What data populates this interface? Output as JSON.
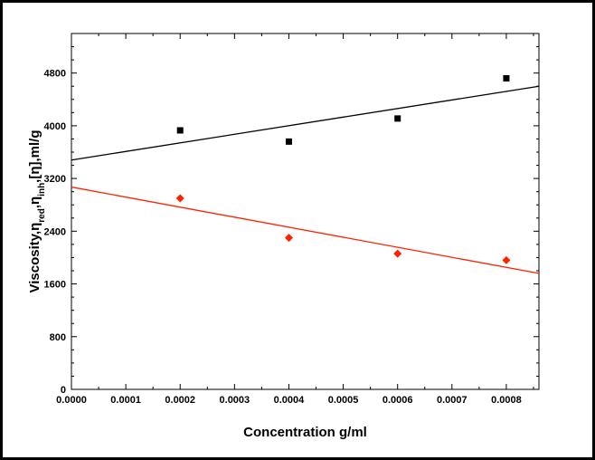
{
  "chart_data": {
    "type": "scatter",
    "xlabel": "Concentration g/ml",
    "ylabel_parts": {
      "prefix": "Viscosity,η",
      "red_sub": "red",
      "sep1": ",η",
      "inh_sub": "inh",
      "suffix": ",[η],ml/g"
    },
    "xlim": [
      0.0,
      0.00086
    ],
    "ylim": [
      0,
      5400
    ],
    "x_ticks": [
      "0.0000",
      "0.0001",
      "0.0002",
      "0.0003",
      "0.0004",
      "0.0005",
      "0.0006",
      "0.0007",
      "0.0008"
    ],
    "y_ticks": [
      "0",
      "800",
      "1600",
      "2400",
      "3200",
      "4000",
      "4800"
    ],
    "grid": false,
    "series": [
      {
        "marker": "square",
        "color": "#000000",
        "x": [
          0.0002,
          0.0004,
          0.0006,
          0.0008
        ],
        "y": [
          3930,
          3760,
          4110,
          4720
        ],
        "fit": {
          "x": [
            0.0,
            0.00086
          ],
          "y": [
            3480,
            4600
          ],
          "color": "#000000"
        }
      },
      {
        "marker": "diamond",
        "color": "#ff2000",
        "x": [
          0.0002,
          0.0004,
          0.0006,
          0.0008
        ],
        "y": [
          2900,
          2300,
          2060,
          1960
        ],
        "fit": {
          "x": [
            0.0,
            0.00086
          ],
          "y": [
            3070,
            1760
          ],
          "color": "#ff2000"
        }
      }
    ]
  }
}
